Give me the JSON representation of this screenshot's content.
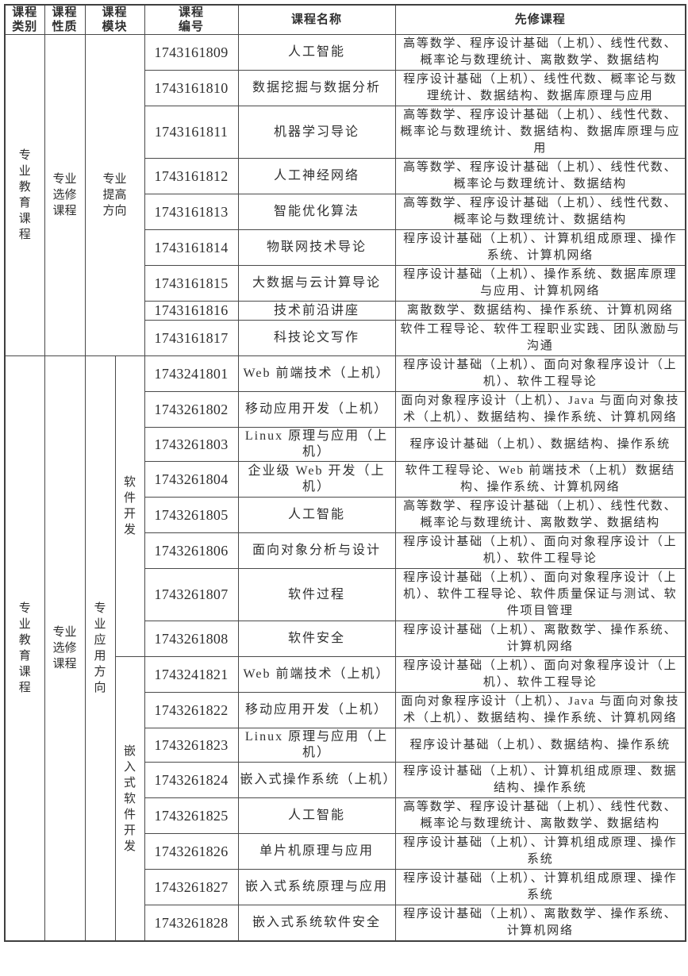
{
  "colors": {
    "border": "#4a4a4a",
    "text": "#2f2f2f",
    "background": "#ffffff"
  },
  "header": {
    "columns": [
      "课程\n类别",
      "课程\n性质",
      "课程\n模块",
      "课程\n编号",
      "课程名称",
      "先修课程"
    ]
  },
  "sections": [
    {
      "category": "专\n业\n教\n育\n课\n程",
      "nature": "专业\n选修\n课程",
      "modules": [
        {
          "label": "专业\n提高\n方向",
          "courses": [
            {
              "id": "1743161809",
              "name": "人工智能",
              "prereq": "高等数学、程序设计基础（上机）、线性代数、概率论与数理统计、离散数学、数据结构"
            },
            {
              "id": "1743161810",
              "name": "数据挖掘与数据分析",
              "prereq": "程序设计基础（上机）、线性代数、概率论与数理统计、数据结构、数据库原理与应用"
            },
            {
              "id": "1743161811",
              "name": "机器学习导论",
              "prereq": "高等数学、程序设计基础（上机）、线性代数、概率论与数理统计、数据结构、数据库原理与应用"
            },
            {
              "id": "1743161812",
              "name": "人工神经网络",
              "prereq": "高等数学、程序设计基础（上机）、线性代数、概率论与数理统计、数据结构"
            },
            {
              "id": "1743161813",
              "name": "智能优化算法",
              "prereq": "高等数学、程序设计基础（上机）、线性代数、概率论与数理统计、数据结构"
            },
            {
              "id": "1743161814",
              "name": "物联网技术导论",
              "prereq": "程序设计基础（上机）、计算机组成原理、操作系统、计算机网络"
            },
            {
              "id": "1743161815",
              "name": "大数据与云计算导论",
              "prereq": "程序设计基础（上机）、操作系统、数据库原理与应用、计算机网络"
            },
            {
              "id": "1743161816",
              "name": "技术前沿讲座",
              "prereq": "离散数学、数据结构、操作系统、计算机网络"
            },
            {
              "id": "1743161817",
              "name": "科技论文写作",
              "prereq": "软件工程导论、软件工程职业实践、团队激励与沟通"
            }
          ]
        }
      ]
    },
    {
      "category": "专\n业\n教\n育\n课\n程",
      "nature": "专业\n选修\n课程",
      "module_group": "专\n业\n应\n用\n方\n向",
      "modules": [
        {
          "label": "软\n件\n开\n发",
          "courses": [
            {
              "id": "1743241801",
              "name": "Web 前端技术（上机）",
              "prereq": "程序设计基础（上机）、面向对象程序设计（上机）、软件工程导论"
            },
            {
              "id": "1743261802",
              "name": "移动应用开发（上机）",
              "prereq": "面向对象程序设计（上机）、Java 与面向对象技术（上机）、数据结构、操作系统、计算机网络"
            },
            {
              "id": "1743261803",
              "name": "Linux 原理与应用（上机）",
              "prereq": "程序设计基础（上机）、数据结构、操作系统"
            },
            {
              "id": "1743261804",
              "name": "企业级 Web 开发（上机）",
              "prereq": "软件工程导论、Web 前端技术（上机）数据结构、操作系统、计算机网络"
            },
            {
              "id": "1743261805",
              "name": "人工智能",
              "prereq": "高等数学、程序设计基础（上机）、线性代数、概率论与数理统计、离散数学、数据结构"
            },
            {
              "id": "1743261806",
              "name": "面向对象分析与设计",
              "prereq": "程序设计基础（上机）、面向对象程序设计（上机）、软件工程导论"
            },
            {
              "id": "1743261807",
              "name": "软件过程",
              "prereq": "程序设计基础（上机）、面向对象程序设计（上机）、软件工程导论、软件质量保证与测试、软件项目管理"
            },
            {
              "id": "1743261808",
              "name": "软件安全",
              "prereq": "程序设计基础（上机）、离散数学、操作系统、计算机网络"
            }
          ]
        },
        {
          "label": "嵌\n入\n式\n软\n件\n开\n发",
          "courses": [
            {
              "id": "1743241821",
              "name": "Web 前端技术（上机）",
              "prereq": "程序设计基础（上机）、面向对象程序设计（上机）、软件工程导论"
            },
            {
              "id": "1743261822",
              "name": "移动应用开发（上机）",
              "prereq": "面向对象程序设计（上机）、Java 与面向对象技术（上机）、数据结构、操作系统、计算机网络"
            },
            {
              "id": "1743261823",
              "name": "Linux 原理与应用（上机）",
              "prereq": "程序设计基础（上机）、数据结构、操作系统"
            },
            {
              "id": "1743261824",
              "name": "嵌入式操作系统（上机）",
              "prereq": "程序设计基础（上机）、计算机组成原理、数据结构、操作系统"
            },
            {
              "id": "1743261825",
              "name": "人工智能",
              "prereq": "高等数学、程序设计基础（上机）、线性代数、概率论与数理统计、离散数学、数据结构"
            },
            {
              "id": "1743261826",
              "name": "单片机原理与应用",
              "prereq": "程序设计基础（上机）、计算机组成原理、操作系统"
            },
            {
              "id": "1743261827",
              "name": "嵌入式系统原理与应用",
              "prereq": "程序设计基础（上机）、计算机组成原理、操作系统"
            },
            {
              "id": "1743261828",
              "name": "嵌入式系统软件安全",
              "prereq": "程序设计基础（上机）、离散数学、操作系统、计算机网络"
            }
          ]
        }
      ]
    }
  ]
}
